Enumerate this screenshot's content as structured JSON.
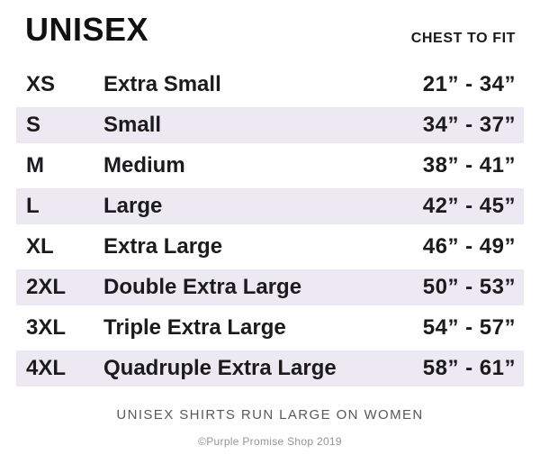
{
  "header": {
    "title": "UNISEX",
    "column_header": "CHEST TO FIT"
  },
  "footer": {
    "note": "UNISEX SHIRTS RUN LARGE ON WOMEN",
    "copyright": "©Purple Promise Shop 2019"
  },
  "colors": {
    "row_shade": "#ECE9F2",
    "text": "#1B1B1D",
    "note_text": "#58595B",
    "copyright_text": "#939598"
  },
  "chart_data": {
    "type": "table",
    "title": "UNISEX",
    "columns": [
      "size_code",
      "size_name",
      "chest_to_fit"
    ],
    "column_header_label": "CHEST TO FIT",
    "shaded_row_indices": [
      1,
      3,
      5,
      7
    ],
    "rows": [
      {
        "code": "XS",
        "name": "Extra Small",
        "chest": "21” - 34”"
      },
      {
        "code": "S",
        "name": "Small",
        "chest": "34” - 37”"
      },
      {
        "code": "M",
        "name": "Medium",
        "chest": "38” - 41”"
      },
      {
        "code": "L",
        "name": "Large",
        "chest": "42” - 45”"
      },
      {
        "code": "XL",
        "name": "Extra Large",
        "chest": "46” - 49”"
      },
      {
        "code": "2XL",
        "name": "Double Extra Large",
        "chest": "50” - 53”"
      },
      {
        "code": "3XL",
        "name": "Triple Extra Large",
        "chest": "54” - 57”"
      },
      {
        "code": "4XL",
        "name": "Quadruple Extra Large",
        "chest": "58” - 61”"
      }
    ],
    "footnote": "UNISEX SHIRTS RUN LARGE ON WOMEN"
  }
}
